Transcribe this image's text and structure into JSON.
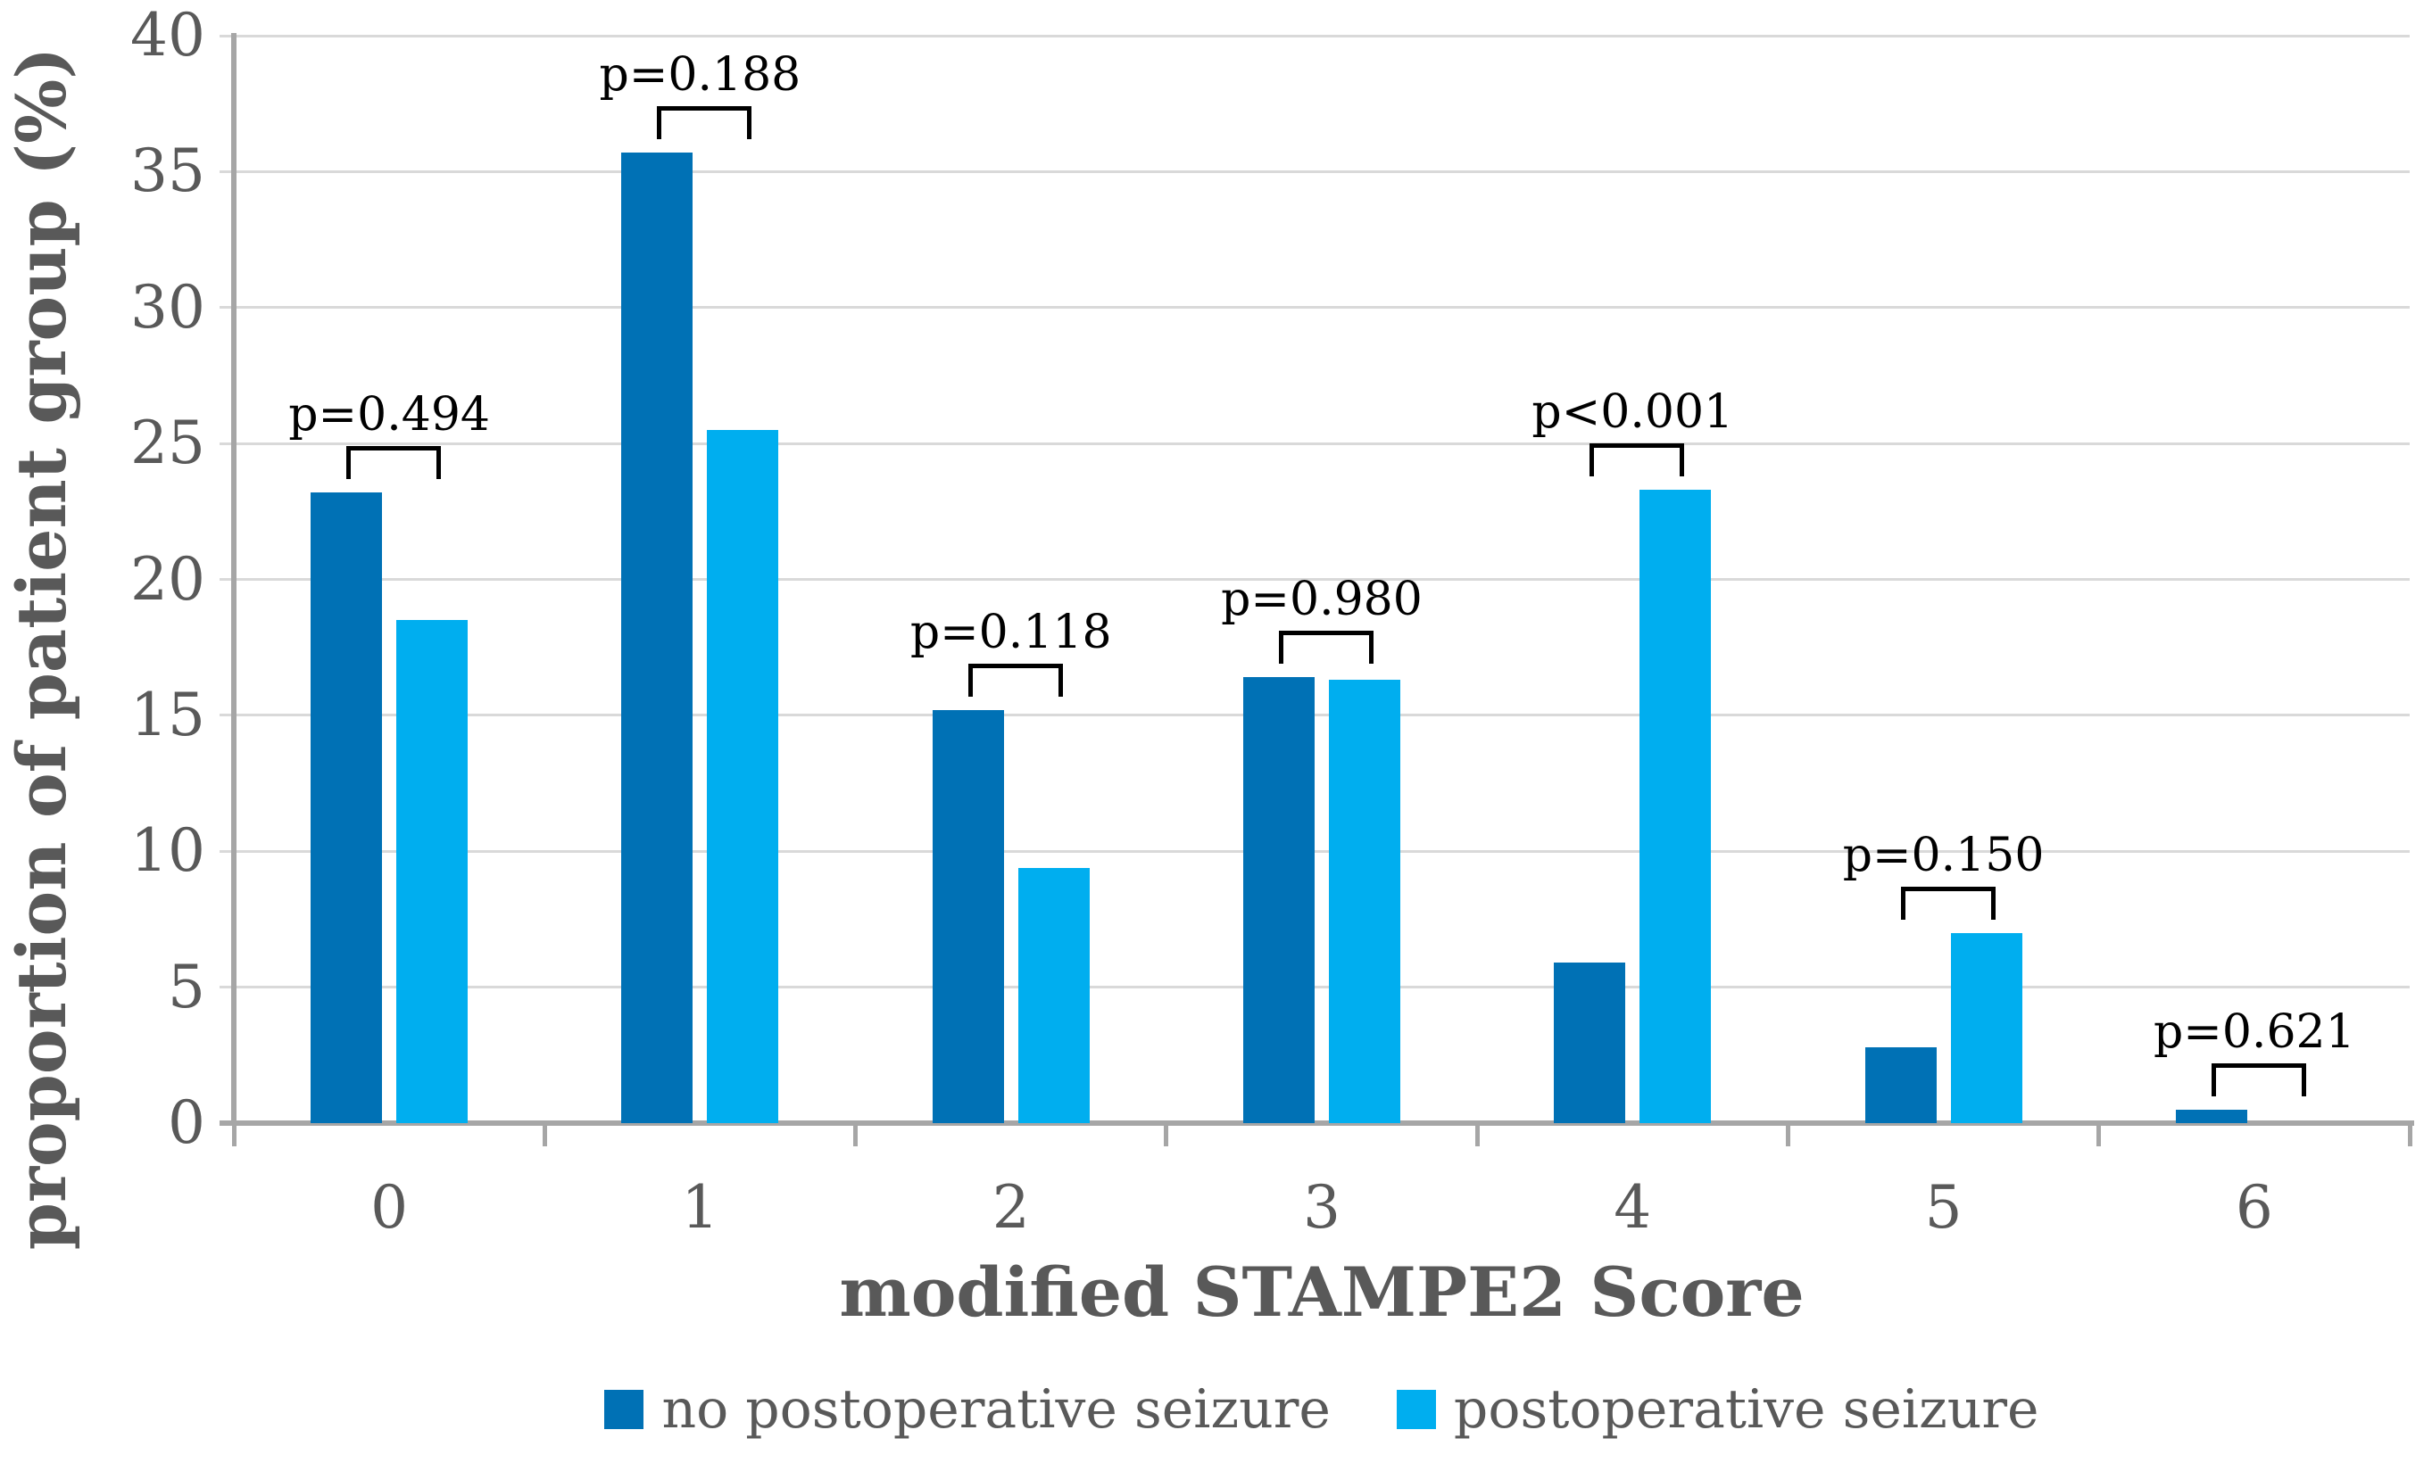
{
  "chart_data": {
    "type": "bar",
    "title": "",
    "xlabel": "modified STAMPE2 Score",
    "ylabel": "proportion of patient group (%)",
    "categories": [
      "0",
      "1",
      "2",
      "3",
      "4",
      "5",
      "6"
    ],
    "series": [
      {
        "name": "no postoperative seizure",
        "color": "#0071b5",
        "values": [
          23.2,
          35.7,
          15.2,
          16.4,
          5.9,
          2.8,
          0.5
        ]
      },
      {
        "name": "postoperative seizure",
        "color": "#00aeef",
        "values": [
          18.5,
          25.5,
          9.4,
          16.3,
          23.3,
          7.0,
          0
        ]
      }
    ],
    "p_value_annotations": [
      "p=0.494",
      "p=0.188",
      "p=0.118",
      "p=0.980",
      "p<0.001",
      "p=0.150",
      "p=0.621"
    ],
    "ylim": [
      0,
      40
    ],
    "ytick_step": 5,
    "yticks": [
      "0",
      "5",
      "10",
      "15",
      "20",
      "25",
      "30",
      "35",
      "40"
    ],
    "grid": true,
    "legend_position": "bottom"
  },
  "colors": {
    "bar_no_seizure": "#0071b5",
    "bar_seizure": "#00aeef",
    "gridline": "#d9d9d9",
    "axis": "#a6a6a6",
    "axis_text": "#595959",
    "annotation": "#000000",
    "background": "#ffffff"
  }
}
